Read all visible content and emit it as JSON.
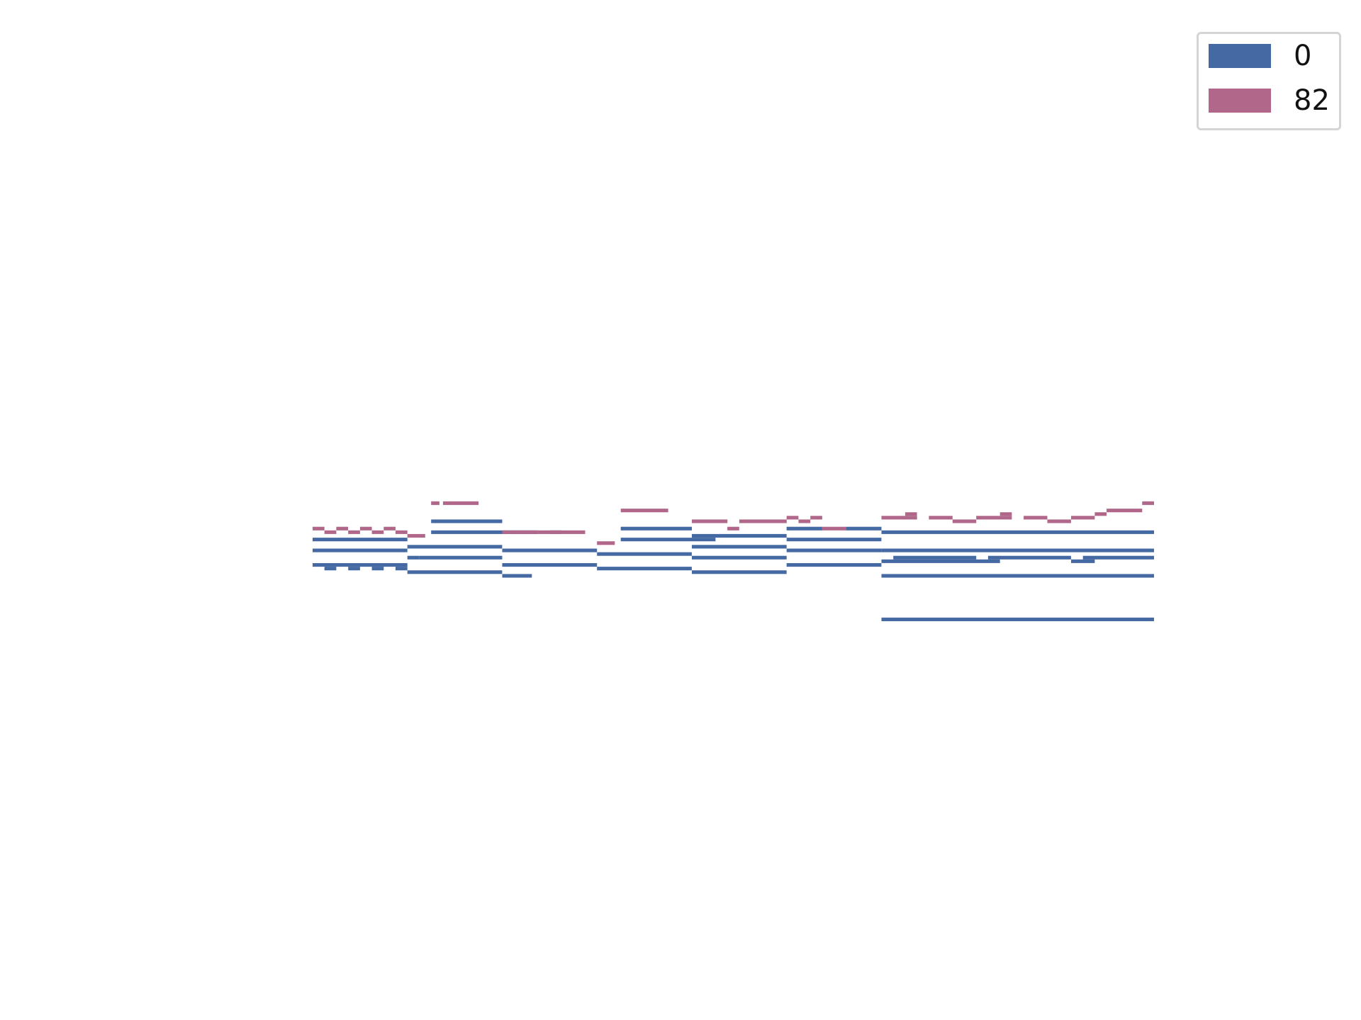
{
  "chart_data": {
    "type": "piano-roll",
    "title": "",
    "xlabel": "",
    "ylabel": "",
    "axes_visible": false,
    "grid": false,
    "legend_position": "top-right",
    "xlim": [
      0,
      71
    ],
    "ylim": [
      30,
      108
    ],
    "series": [
      {
        "name": "0",
        "color": "#4469a3",
        "notes": [
          [
            0,
            8,
            64
          ],
          [
            0,
            8,
            61
          ],
          [
            0,
            8,
            57
          ],
          [
            1,
            1,
            56
          ],
          [
            3,
            1,
            56
          ],
          [
            5,
            1,
            56
          ],
          [
            7,
            1,
            56
          ],
          [
            8,
            8,
            62
          ],
          [
            8,
            1,
            59
          ],
          [
            9,
            7,
            59
          ],
          [
            8,
            8,
            55
          ],
          [
            10,
            6,
            69
          ],
          [
            10,
            6,
            66
          ],
          [
            16,
            8,
            61
          ],
          [
            16,
            8,
            57
          ],
          [
            16,
            2.5,
            54
          ],
          [
            16,
            2,
            66
          ],
          [
            18,
            1,
            66
          ],
          [
            20,
            1,
            66
          ],
          [
            24,
            8,
            60
          ],
          [
            24,
            8,
            56
          ],
          [
            26,
            6,
            67
          ],
          [
            26,
            8,
            64
          ],
          [
            32,
            8,
            65
          ],
          [
            32,
            8,
            62
          ],
          [
            32,
            8,
            59
          ],
          [
            32,
            8,
            55
          ],
          [
            40,
            8,
            64
          ],
          [
            40,
            8,
            61
          ],
          [
            40,
            8,
            57
          ],
          [
            40,
            3,
            67
          ],
          [
            45,
            3,
            67
          ],
          [
            48,
            23,
            66
          ],
          [
            48,
            23,
            61
          ],
          [
            48,
            23,
            54
          ],
          [
            48,
            23,
            42
          ],
          [
            48,
            10,
            58
          ],
          [
            49,
            7,
            59
          ],
          [
            57,
            7,
            59
          ],
          [
            64,
            2,
            58
          ],
          [
            65,
            6,
            59
          ]
        ]
      },
      {
        "name": "82",
        "color": "#b0678a",
        "notes": [
          [
            0,
            1,
            67
          ],
          [
            1,
            1,
            66
          ],
          [
            2,
            1,
            67
          ],
          [
            3,
            1,
            66
          ],
          [
            4,
            1,
            67
          ],
          [
            5,
            1,
            66
          ],
          [
            6,
            1,
            67
          ],
          [
            7,
            1,
            66
          ],
          [
            8,
            1.5,
            65
          ],
          [
            10,
            0.7,
            74
          ],
          [
            11,
            3,
            74
          ],
          [
            16,
            1,
            66
          ],
          [
            17,
            1,
            66
          ],
          [
            18,
            1,
            66
          ],
          [
            19,
            4,
            66
          ],
          [
            24,
            1.5,
            63
          ],
          [
            26,
            4,
            72
          ],
          [
            32,
            3,
            69
          ],
          [
            35,
            1,
            67
          ],
          [
            36,
            4,
            69
          ],
          [
            40,
            1,
            70
          ],
          [
            41,
            1,
            69
          ],
          [
            42,
            1,
            70
          ],
          [
            43,
            2,
            67
          ],
          [
            48,
            3,
            70
          ],
          [
            50,
            1,
            71
          ],
          [
            52,
            2,
            70
          ],
          [
            54,
            2,
            69
          ],
          [
            56,
            3,
            70
          ],
          [
            58,
            1,
            71
          ],
          [
            60,
            2,
            70
          ],
          [
            62,
            2,
            69
          ],
          [
            64,
            2,
            70
          ],
          [
            66,
            1,
            71
          ],
          [
            67,
            3,
            72
          ],
          [
            70,
            1,
            74
          ]
        ]
      }
    ]
  },
  "legend": {
    "items": [
      {
        "label": "0",
        "color": "#4469a3"
      },
      {
        "label": "82",
        "color": "#b0678a"
      }
    ]
  }
}
